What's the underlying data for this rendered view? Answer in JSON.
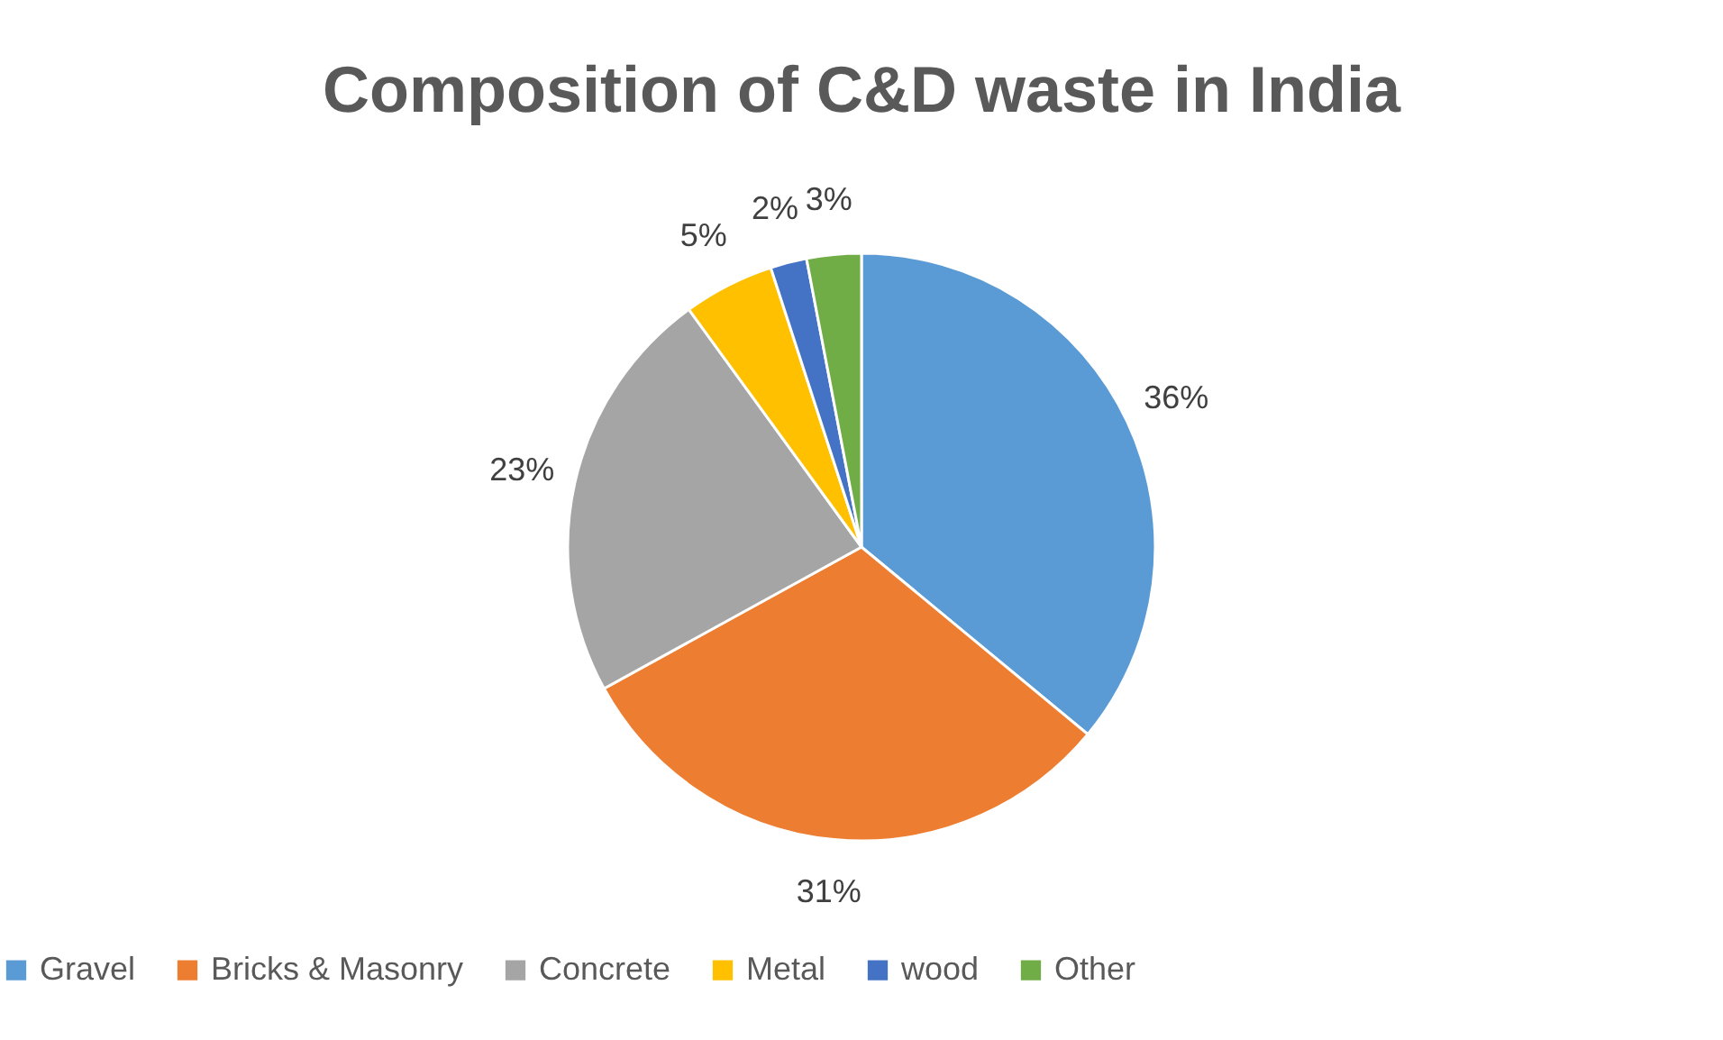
{
  "chart_data": {
    "type": "pie",
    "title": "Composition of C&D waste in India",
    "categories": [
      "Gravel",
      "Bricks & Masonry",
      "Concrete",
      "Metal",
      "wood",
      "Other"
    ],
    "values": [
      36,
      31,
      23,
      5,
      2,
      3
    ],
    "colors": [
      "#5b9bd5",
      "#ed7d31",
      "#a5a5a5",
      "#ffc000",
      "#4472c4",
      "#70ad47"
    ],
    "value_labels": [
      "36%",
      "31%",
      "23%",
      "5%",
      "2%",
      "3%"
    ],
    "legend": "bottom"
  }
}
